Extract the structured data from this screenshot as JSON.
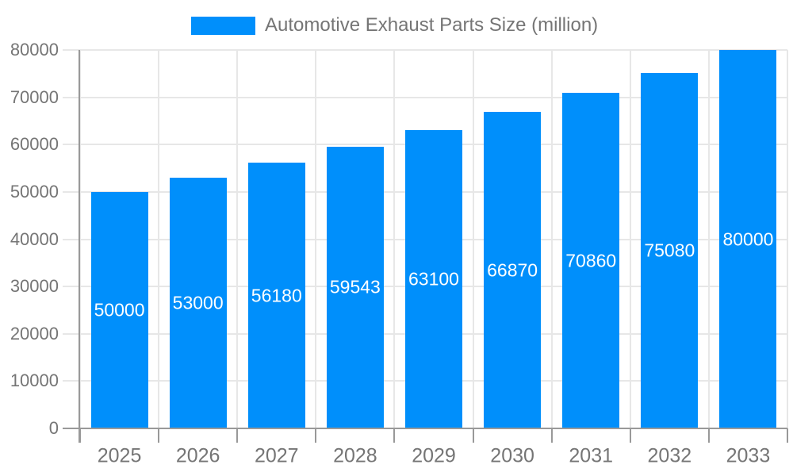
{
  "chart_data": {
    "type": "bar",
    "title": "Automotive Exhaust Parts Size (million)",
    "categories": [
      "2025",
      "2026",
      "2027",
      "2028",
      "2029",
      "2030",
      "2031",
      "2032",
      "2033"
    ],
    "values": [
      50000,
      53000,
      56180,
      59543,
      63100,
      66870,
      70860,
      75080,
      80000
    ],
    "value_labels": [
      "50000",
      "53000",
      "56180",
      "59543",
      "63100",
      "66870",
      "70860",
      "75080",
      "80000"
    ],
    "xlabel": "",
    "ylabel": "",
    "ylim": [
      0,
      80000
    ],
    "y_ticks": [
      0,
      10000,
      20000,
      30000,
      40000,
      50000,
      60000,
      70000,
      80000
    ],
    "y_tick_labels": [
      "0",
      "10000",
      "20000",
      "30000",
      "40000",
      "50000",
      "60000",
      "70000",
      "80000"
    ],
    "grid": {
      "horizontal": true,
      "vertical": true
    },
    "legend_position": "top-center",
    "colors": {
      "bar": "#008FFB",
      "gridline": "#e7e7e7",
      "axis_line": "#999999",
      "axis_text": "#757575",
      "value_label": "#ffffff",
      "background": "#ffffff"
    }
  }
}
